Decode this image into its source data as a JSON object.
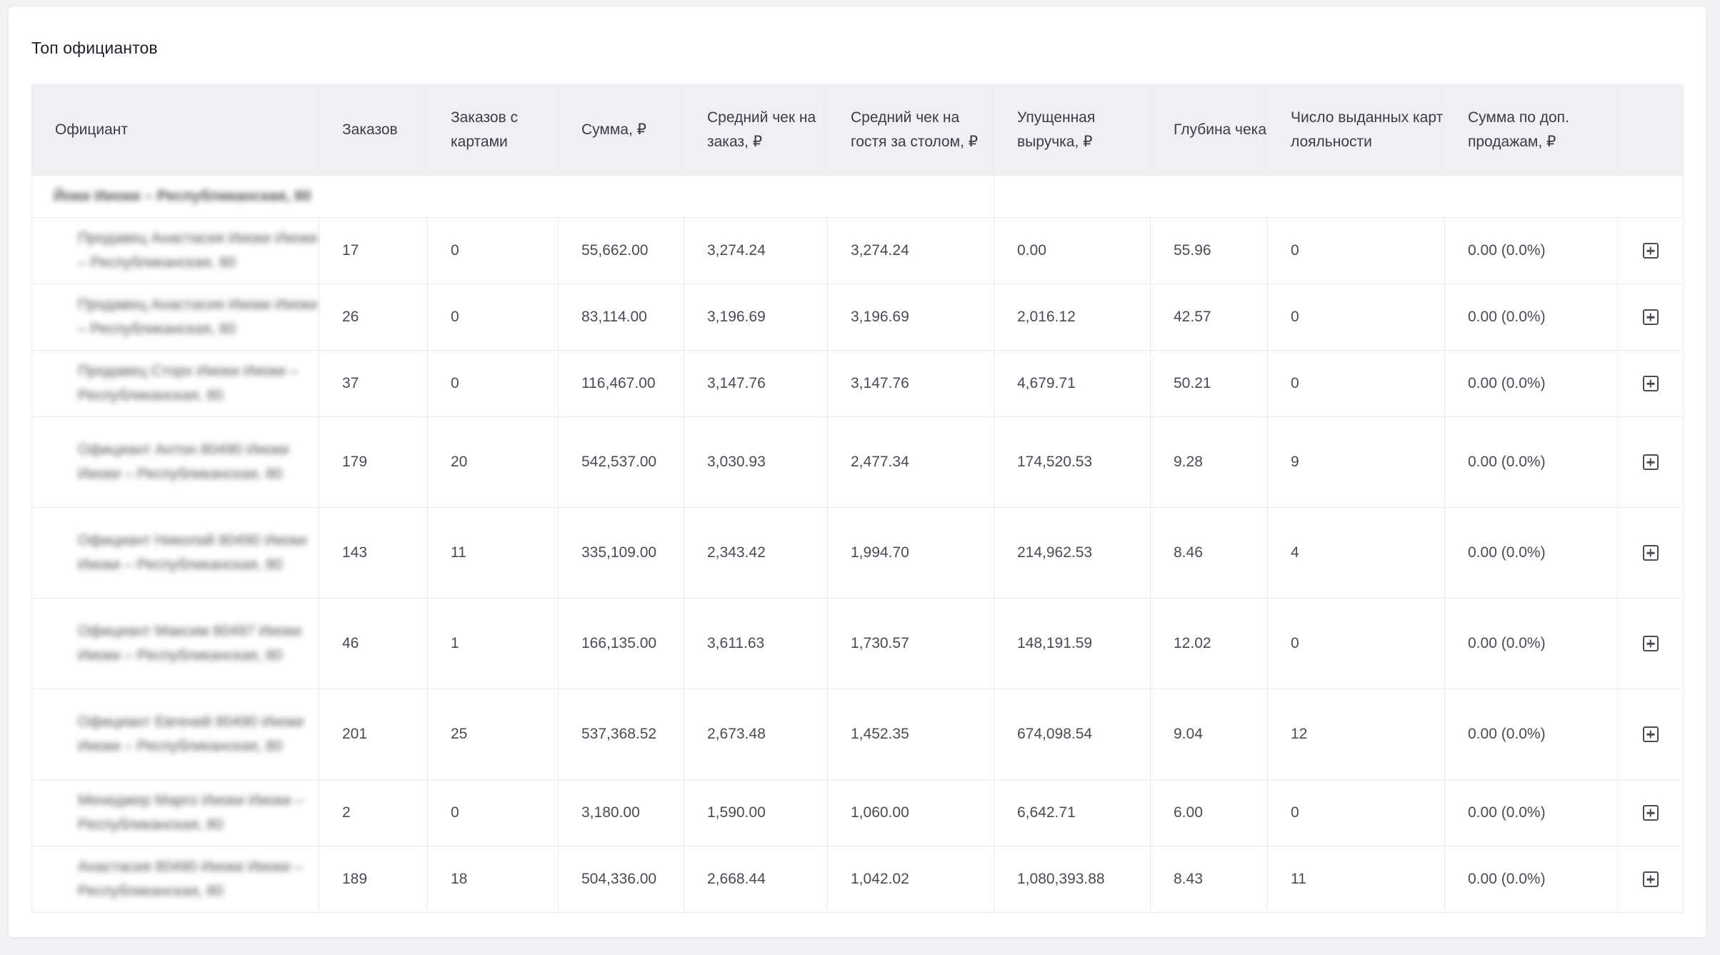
{
  "card": {
    "title": "Топ официантов"
  },
  "table": {
    "headers": {
      "waiter": "Официант",
      "orders": "Заказов",
      "orders_with_cards": "Заказов с картами",
      "sum": "Сумма, ₽",
      "avg_check_order": "Средний чек на заказ, ₽",
      "avg_check_guest": "Средний чек на гостя за столом, ₽",
      "missed_revenue": "Упущенная выручка, ₽",
      "check_depth": "Глубина чека",
      "loyalty_cards": "Число выданных карт лояльности",
      "upsell_sum": "Сумма по доп. продажам, ₽"
    },
    "group_label": "Йоки Ииоки – Республиканская, 80",
    "rows": [
      {
        "waiter": "Продавец Анастасия Ииоки Ииоки – Республиканская, 80",
        "orders": "17",
        "orders_with_cards": "0",
        "sum": "55,662.00",
        "avg_check_order": "3,274.24",
        "avg_check_guest": "3,274.24",
        "missed_revenue": "0.00",
        "check_depth": "55.96",
        "loyalty_cards": "0",
        "upsell_sum": "0.00 (0.0%)"
      },
      {
        "waiter": "Продавец Анастасия Ииоки Ииоки – Республиканская, 80",
        "orders": "26",
        "orders_with_cards": "0",
        "sum": "83,114.00",
        "avg_check_order": "3,196.69",
        "avg_check_guest": "3,196.69",
        "missed_revenue": "2,016.12",
        "check_depth": "42.57",
        "loyalty_cards": "0",
        "upsell_sum": "0.00 (0.0%)"
      },
      {
        "waiter": "Продавец Сторх Ииоки Ииоки – Республиканская, 80",
        "orders": "37",
        "orders_with_cards": "0",
        "sum": "116,467.00",
        "avg_check_order": "3,147.76",
        "avg_check_guest": "3,147.76",
        "missed_revenue": "4,679.71",
        "check_depth": "50.21",
        "loyalty_cards": "0",
        "upsell_sum": "0.00 (0.0%)"
      },
      {
        "waiter": "Официант Антон 80490 Ииоки Ииоки – Республиканская, 80",
        "orders": "179",
        "orders_with_cards": "20",
        "sum": "542,537.00",
        "avg_check_order": "3,030.93",
        "avg_check_guest": "2,477.34",
        "missed_revenue": "174,520.53",
        "check_depth": "9.28",
        "loyalty_cards": "9",
        "upsell_sum": "0.00 (0.0%)"
      },
      {
        "waiter": "Официант Николай 80490 Ииоки Ииоки – Республиканская, 80",
        "orders": "143",
        "orders_with_cards": "11",
        "sum": "335,109.00",
        "avg_check_order": "2,343.42",
        "avg_check_guest": "1,994.70",
        "missed_revenue": "214,962.53",
        "check_depth": "8.46",
        "loyalty_cards": "4",
        "upsell_sum": "0.00 (0.0%)"
      },
      {
        "waiter": "Официант Максим 80497 Ииоки Ииоки – Республиканская, 80",
        "orders": "46",
        "orders_with_cards": "1",
        "sum": "166,135.00",
        "avg_check_order": "3,611.63",
        "avg_check_guest": "1,730.57",
        "missed_revenue": "148,191.59",
        "check_depth": "12.02",
        "loyalty_cards": "0",
        "upsell_sum": "0.00 (0.0%)"
      },
      {
        "waiter": "Официант Евгений 80490 Ииоки Ииоки – Республиканская, 80",
        "orders": "201",
        "orders_with_cards": "25",
        "sum": "537,368.52",
        "avg_check_order": "2,673.48",
        "avg_check_guest": "1,452.35",
        "missed_revenue": "674,098.54",
        "check_depth": "9.04",
        "loyalty_cards": "12",
        "upsell_sum": "0.00 (0.0%)"
      },
      {
        "waiter": "Менеджер Марго Ииоки Ииоки – Республиканская, 80",
        "orders": "2",
        "orders_with_cards": "0",
        "sum": "3,180.00",
        "avg_check_order": "1,590.00",
        "avg_check_guest": "1,060.00",
        "missed_revenue": "6,642.71",
        "check_depth": "6.00",
        "loyalty_cards": "0",
        "upsell_sum": "0.00 (0.0%)"
      },
      {
        "waiter": "Анастасия 80490 Ииоки Ииоки – Республиканская, 80",
        "orders": "189",
        "orders_with_cards": "18",
        "sum": "504,336.00",
        "avg_check_order": "2,668.44",
        "avg_check_guest": "1,042.02",
        "missed_revenue": "1,080,393.88",
        "check_depth": "8.43",
        "loyalty_cards": "11",
        "upsell_sum": "0.00 (0.0%)"
      }
    ],
    "row_action_icon": "plus-square-icon"
  }
}
